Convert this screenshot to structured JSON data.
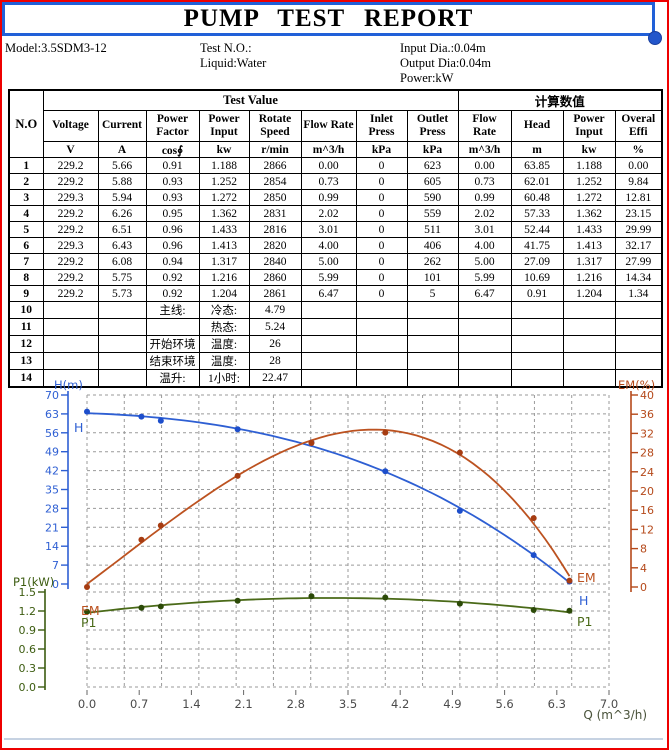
{
  "page": {
    "title": "PUMP TEST REPORT"
  },
  "info": {
    "model": "Model:3.5SDM3-12",
    "test_no": "Test N.O.:",
    "liquid": "Liquid:Water",
    "input_dia": "Input Dia.:0.04m",
    "output_dia": "Output Dia:0.04m",
    "power": "Power:kW"
  },
  "table": {
    "group_headers": {
      "no": "N.O",
      "test_value": "Test Value",
      "calculated": "计算数值"
    },
    "columns": [
      "Voltage",
      "Current",
      "Power Factor",
      "Power Input",
      "Rotate Speed",
      "Flow Rate",
      "Inlet Press",
      "Outlet Press",
      "Flow Rate",
      "Head",
      "Power Input",
      "Overal Effi"
    ],
    "units": [
      "V",
      "A",
      "cos∮",
      "kw",
      "r/min",
      "m^3/h",
      "kPa",
      "kPa",
      "m^3/h",
      "m",
      "kw",
      "%"
    ],
    "rows": [
      [
        "1",
        "229.2",
        "5.66",
        "0.91",
        "1.188",
        "2866",
        "0.00",
        "0",
        "623",
        "0.00",
        "63.85",
        "1.188",
        "0.00"
      ],
      [
        "2",
        "229.2",
        "5.88",
        "0.93",
        "1.252",
        "2854",
        "0.73",
        "0",
        "605",
        "0.73",
        "62.01",
        "1.252",
        "9.84"
      ],
      [
        "3",
        "229.3",
        "5.94",
        "0.93",
        "1.272",
        "2850",
        "0.99",
        "0",
        "590",
        "0.99",
        "60.48",
        "1.272",
        "12.81"
      ],
      [
        "4",
        "229.2",
        "6.26",
        "0.95",
        "1.362",
        "2831",
        "2.02",
        "0",
        "559",
        "2.02",
        "57.33",
        "1.362",
        "23.15"
      ],
      [
        "5",
        "229.2",
        "6.51",
        "0.96",
        "1.433",
        "2816",
        "3.01",
        "0",
        "511",
        "3.01",
        "52.44",
        "1.433",
        "29.99"
      ],
      [
        "6",
        "229.3",
        "6.43",
        "0.96",
        "1.413",
        "2820",
        "4.00",
        "0",
        "406",
        "4.00",
        "41.75",
        "1.413",
        "32.17"
      ],
      [
        "7",
        "229.2",
        "6.08",
        "0.94",
        "1.317",
        "2840",
        "5.00",
        "0",
        "262",
        "5.00",
        "27.09",
        "1.317",
        "27.99"
      ],
      [
        "8",
        "229.2",
        "5.75",
        "0.92",
        "1.216",
        "2860",
        "5.99",
        "0",
        "101",
        "5.99",
        "10.69",
        "1.216",
        "14.34"
      ],
      [
        "9",
        "229.2",
        "5.73",
        "0.92",
        "1.204",
        "2861",
        "6.47",
        "0",
        "5",
        "6.47",
        "0.91",
        "1.204",
        "1.34"
      ],
      [
        "10",
        "",
        "",
        "主线:",
        "冷态:",
        "4.79",
        "",
        "",
        "",
        "",
        "",
        "",
        ""
      ],
      [
        "11",
        "",
        "",
        "",
        "热态:",
        "5.24",
        "",
        "",
        "",
        "",
        "",
        "",
        ""
      ],
      [
        "12",
        "",
        "",
        "开始环境",
        "温度:",
        "26",
        "",
        "",
        "",
        "",
        "",
        "",
        ""
      ],
      [
        "13",
        "",
        "",
        "结束环境",
        "温度:",
        "28",
        "",
        "",
        "",
        "",
        "",
        "",
        ""
      ],
      [
        "14",
        "",
        "",
        "温升:",
        "1小时:",
        "22.47",
        "",
        "",
        "",
        "",
        "",
        "",
        ""
      ]
    ]
  },
  "chart_data": {
    "type": "line",
    "title": "Pump performance curves (H, EM, P1 vs Q)",
    "x": {
      "label": "Q (m^3/h)",
      "min": 0,
      "max": 7,
      "tick_step": 0.7,
      "tick_labels": [
        "0.0",
        "0.7",
        "1.4",
        "2.1",
        "2.8",
        "3.5",
        "4.2",
        "4.9",
        "5.6",
        "6.3",
        "7.0"
      ],
      "label_color": "#49523a",
      "tick_color": "#4a4a4a"
    },
    "axes": {
      "H": {
        "label": "H(m)",
        "min": 0,
        "max": 70,
        "tick_step": 7,
        "color": "#2e5fd3"
      },
      "EM": {
        "label": "EM(%)",
        "min": 0,
        "max": 40,
        "tick_step": 4,
        "color": "#b5491a"
      },
      "P1": {
        "label": "P1(kW)",
        "min": 0,
        "max": 1.5,
        "tick_step": 0.3,
        "color": "#3c5c10"
      }
    },
    "x_values": [
      0.0,
      0.73,
      0.99,
      2.02,
      3.01,
      4.0,
      5.0,
      5.99,
      6.47
    ],
    "series": [
      {
        "name": "H",
        "axis": "H",
        "color": "#2e5fd3",
        "dot_color": "#1d4ecb",
        "values": [
          63.85,
          62.01,
          60.48,
          57.33,
          52.44,
          41.75,
          27.09,
          10.69,
          0.91
        ]
      },
      {
        "name": "EM",
        "axis": "EM",
        "color": "#bc5220",
        "dot_color": "#a63c12",
        "values": [
          0.0,
          9.84,
          12.81,
          23.15,
          29.99,
          32.17,
          27.99,
          14.34,
          1.34
        ]
      },
      {
        "name": "P1",
        "axis": "P1",
        "color": "#4a6a18",
        "dot_color": "#2c4a08",
        "values": [
          1.188,
          1.252,
          1.272,
          1.362,
          1.433,
          1.413,
          1.317,
          1.216,
          1.204
        ]
      }
    ],
    "grid": {
      "on": true,
      "color": "#9a9a9a",
      "style": "dashed",
      "x_minor_step": 0.5
    },
    "legend_position": "curve-end-labels"
  }
}
